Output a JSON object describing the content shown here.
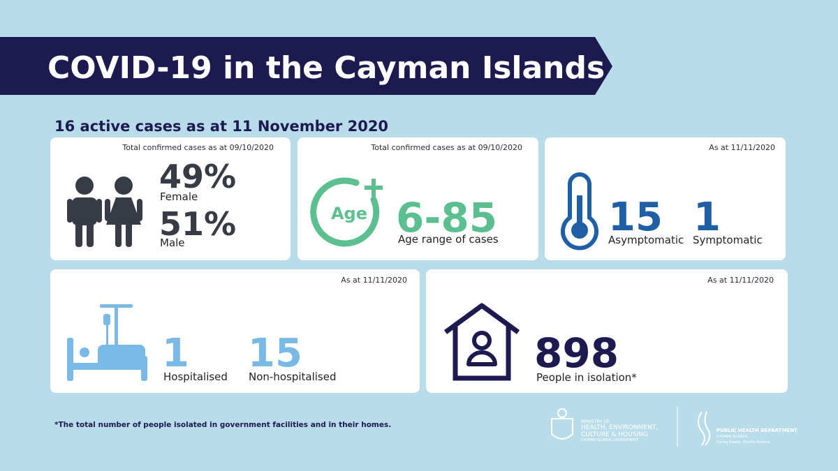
{
  "header": {
    "title": "COVID-19 in the Cayman Islands"
  },
  "subtitle": "16 active cases as at 11 November 2020",
  "cards": [
    {
      "note": "Total confirmed cases as at 09/10/2020",
      "stats": [
        {
          "value": "49%",
          "label": "Female"
        },
        {
          "value": "51%",
          "label": "Male"
        }
      ]
    },
    {
      "note": "Total confirmed cases as at 09/10/2020",
      "icon_label": "Age",
      "stats": [
        {
          "value": "6-85",
          "label": "Age range of cases"
        }
      ]
    },
    {
      "note": "As at 11/11/2020",
      "stats": [
        {
          "value": "15",
          "label": "Asymptomatic"
        },
        {
          "value": "1",
          "label": "Symptomatic"
        }
      ]
    },
    {
      "note": "As at 11/11/2020",
      "stats": [
        {
          "value": "1",
          "label": "Hospitalised"
        },
        {
          "value": "15",
          "label": "Non-hospitalised"
        }
      ]
    },
    {
      "note": "As at 11/11/2020",
      "stats": [
        {
          "value": "898",
          "label": "People in isolation*"
        }
      ]
    }
  ],
  "footnote": "*The total number of people isolated in government facilities and in their homes.",
  "logos": {
    "ministry": [
      "MINISTRY OF",
      "HEALTH, ENVIRONMENT,",
      "CULTURE & HOUSING",
      "CAYMAN ISLANDS GOVERNMENT"
    ],
    "phd": [
      "PUBLIC HEALTH DEPARTMENT",
      "CAYMAN ISLANDS",
      "Caring People. Quality Service."
    ]
  }
}
